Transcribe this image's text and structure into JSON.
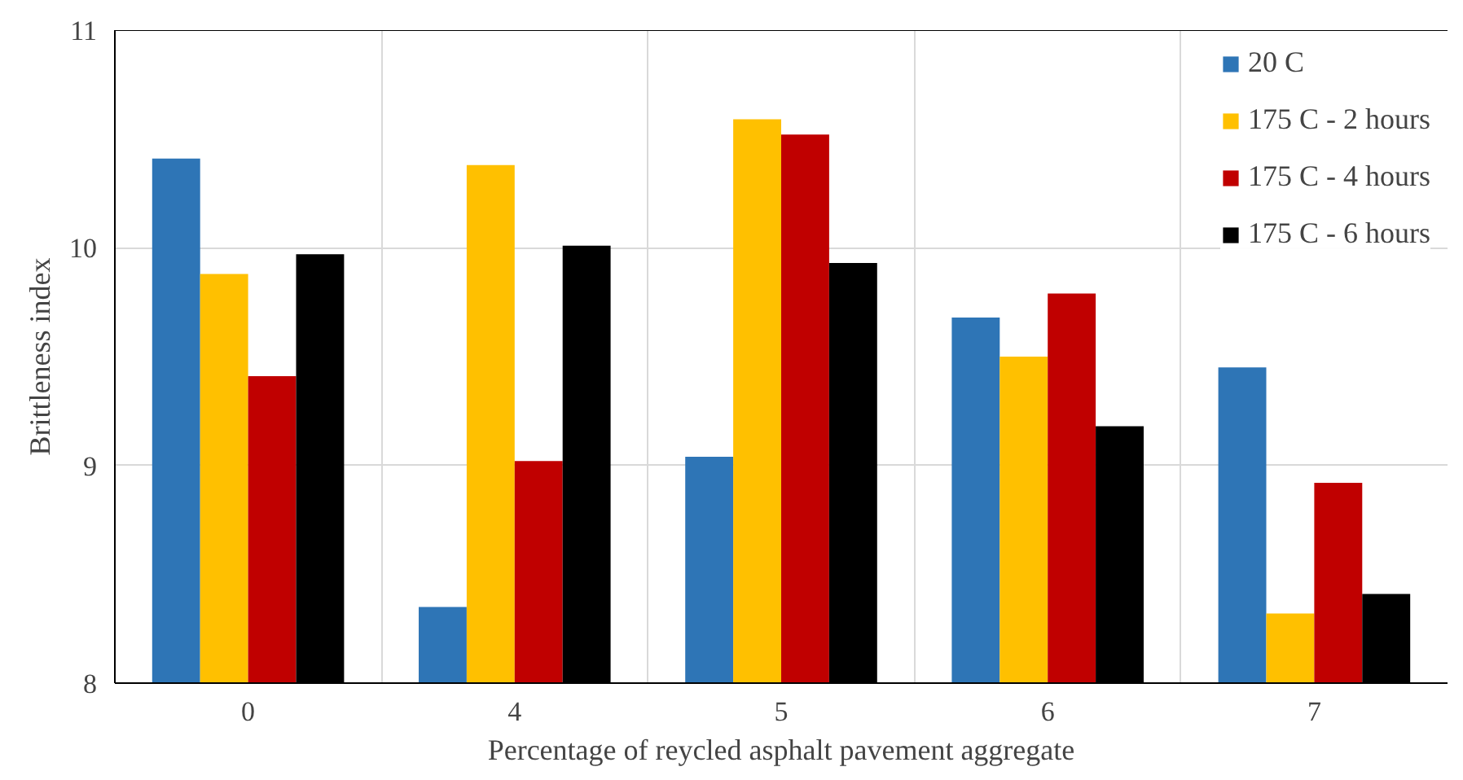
{
  "chart_data": {
    "type": "bar",
    "xlabel": "Percentage of reycled asphalt pavement aggregate",
    "ylabel": "Brittleness index",
    "categories": [
      "0",
      "4",
      "5",
      "6",
      "7"
    ],
    "series": [
      {
        "name": "20 C",
        "color": "#2e75b6",
        "values": [
          10.41,
          8.35,
          9.04,
          9.68,
          9.45
        ]
      },
      {
        "name": "175 C - 2 hours",
        "color": "#ffc000",
        "values": [
          9.88,
          10.38,
          10.59,
          9.5,
          8.32
        ]
      },
      {
        "name": "175 C - 4 hours",
        "color": "#c00000",
        "values": [
          9.41,
          9.02,
          10.52,
          9.79,
          8.92
        ]
      },
      {
        "name": "175 C - 6 hours",
        "color": "#000000",
        "values": [
          9.97,
          10.01,
          9.93,
          9.18,
          8.41
        ]
      }
    ],
    "ylim": [
      8,
      11
    ],
    "yticks": [
      8,
      9,
      10,
      11
    ],
    "grid": true,
    "legend": "top right"
  }
}
